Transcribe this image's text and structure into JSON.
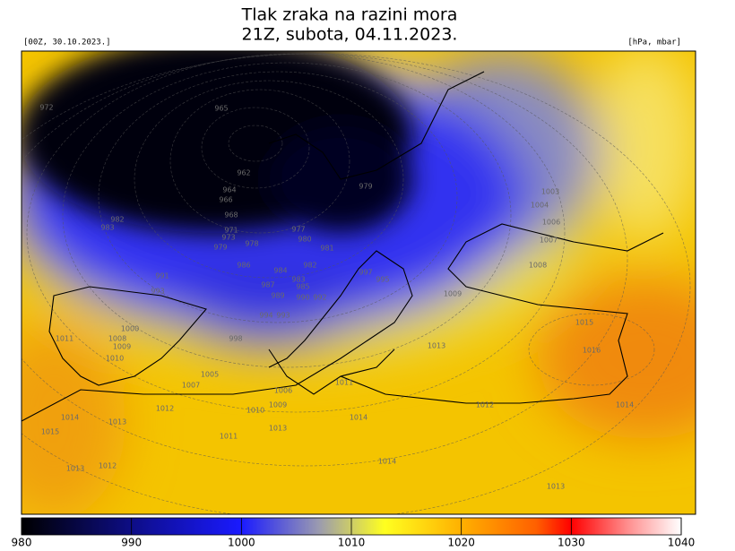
{
  "header": {
    "title_lines": [
      "Tlak zraka na razini mora",
      "21Z, subota, 04.11.2023."
    ],
    "init": "[00Z, 30.10.2023.]",
    "units": "[hPa, mbar]"
  },
  "map": {
    "contour_labels": [
      "972",
      "965",
      "962",
      "964",
      "966",
      "968",
      "982",
      "983",
      "971",
      "973",
      "979",
      "978",
      "977",
      "980",
      "981",
      "979",
      "986",
      "984",
      "982",
      "983",
      "985",
      "987",
      "989",
      "990",
      "992",
      "991",
      "993",
      "994",
      "993",
      "995",
      "997",
      "998",
      "1000",
      "1008",
      "1009",
      "1010",
      "1011",
      "1005",
      "1007",
      "1006",
      "1009",
      "1010",
      "1011",
      "1012",
      "1013",
      "1013",
      "1014",
      "1014",
      "1015",
      "1014",
      "1013",
      "1012",
      "1012",
      "1011",
      "1013",
      "1003",
      "1004",
      "1006",
      "1007",
      "1008",
      "1009",
      "1015",
      "1016",
      "1014",
      "1013"
    ]
  },
  "colorbar": {
    "ticks": [
      980,
      990,
      1000,
      1010,
      1020,
      1030,
      1040
    ]
  }
}
